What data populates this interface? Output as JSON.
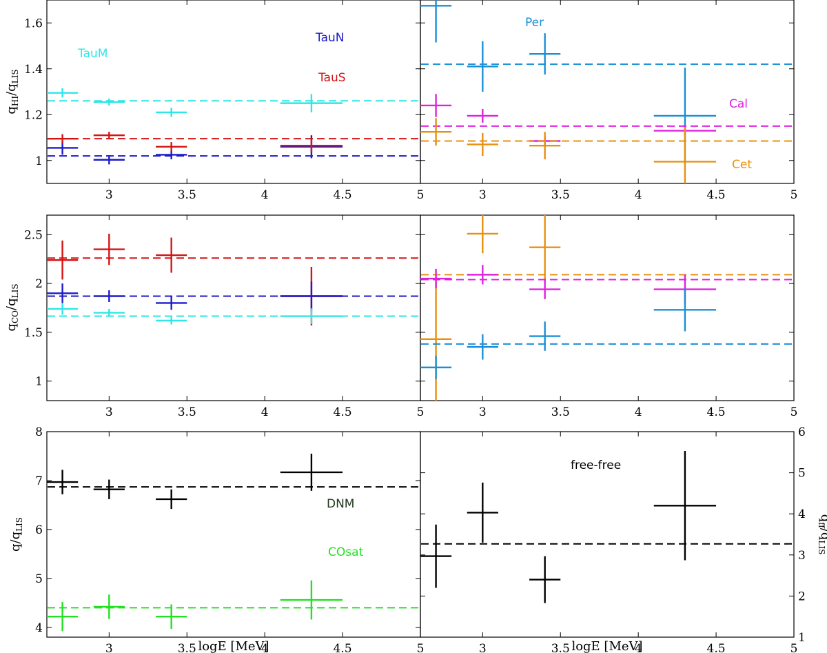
{
  "colors": {
    "TauM": "#2ee6e6",
    "TauN": "#1c1cc8",
    "TauS": "#d41414",
    "Per": "#1a8fd6",
    "Cal": "#e020e0",
    "Cet": "#e8900e",
    "DNM": "#000000",
    "COsat": "#22e022",
    "freefree": "#000000",
    "DNM_text": "#1e3a1e"
  },
  "labels": {
    "xlabel": "logE [MeV]",
    "ylabel_HI": "q_HI/q_LIS",
    "ylabel_CO": "q_CO/q_LIS",
    "ylabel_q": "q/q_LIS",
    "ylabel_ff": "q_ff/q_LIS"
  },
  "chart_data": [
    {
      "type": "scatter",
      "panel": "HI-left",
      "ylabel": "q_HI/q_LIS",
      "xlim": [
        2.6,
        5.0
      ],
      "ylim": [
        0.9,
        1.7
      ],
      "xticks": [
        3,
        3.5,
        4,
        4.5,
        5
      ],
      "yticks": [
        1,
        1.2,
        1.4,
        1.6
      ],
      "series": [
        {
          "name": "TauM",
          "color_key": "TauM",
          "mean": 1.26,
          "points": [
            {
              "x": 2.7,
              "xerr": 0.1,
              "y": 1.295,
              "yerr": 0.02
            },
            {
              "x": 3.0,
              "xerr": 0.1,
              "y": 1.255,
              "yerr": 0.015
            },
            {
              "x": 3.4,
              "xerr": 0.1,
              "y": 1.21,
              "yerr": 0.02
            },
            {
              "x": 4.3,
              "xerr": 0.2,
              "y": 1.25,
              "yerr": 0.04
            }
          ]
        },
        {
          "name": "TauN",
          "color_key": "TauN",
          "mean": 1.02,
          "points": [
            {
              "x": 2.7,
              "xerr": 0.1,
              "y": 1.055,
              "yerr": 0.03
            },
            {
              "x": 3.0,
              "xerr": 0.1,
              "y": 1.003,
              "yerr": 0.02
            },
            {
              "x": 3.4,
              "xerr": 0.1,
              "y": 1.025,
              "yerr": 0.02
            },
            {
              "x": 4.3,
              "xerr": 0.2,
              "y": 1.06,
              "yerr": 0.05
            }
          ]
        },
        {
          "name": "TauS",
          "color_key": "TauS",
          "mean": 1.095,
          "points": [
            {
              "x": 2.7,
              "xerr": 0.1,
              "y": 1.095,
              "yerr": 0.02
            },
            {
              "x": 3.0,
              "xerr": 0.1,
              "y": 1.11,
              "yerr": 0.015
            },
            {
              "x": 3.4,
              "xerr": 0.1,
              "y": 1.06,
              "yerr": 0.02
            },
            {
              "x": 4.3,
              "xerr": 0.2,
              "y": 1.065,
              "yerr": 0.03
            }
          ]
        }
      ]
    },
    {
      "type": "scatter",
      "panel": "HI-right",
      "xlim": [
        2.6,
        5.0
      ],
      "ylim": [
        0.9,
        1.7
      ],
      "xticks": [
        3,
        3.5,
        4,
        4.5,
        5
      ],
      "series": [
        {
          "name": "Per",
          "color_key": "Per",
          "mean": 1.42,
          "points": [
            {
              "x": 2.7,
              "xerr": 0.1,
              "y": 1.675,
              "yerr": 0.16
            },
            {
              "x": 3.0,
              "xerr": 0.1,
              "y": 1.41,
              "yerr": 0.11
            },
            {
              "x": 3.4,
              "xerr": 0.1,
              "y": 1.465,
              "yerr": 0.09
            },
            {
              "x": 4.3,
              "xerr": 0.2,
              "y": 1.195,
              "yerr": 0.21
            }
          ]
        },
        {
          "name": "Cal",
          "color_key": "Cal",
          "mean": 1.15,
          "points": [
            {
              "x": 2.7,
              "xerr": 0.1,
              "y": 1.24,
              "yerr": 0.05
            },
            {
              "x": 3.0,
              "xerr": 0.1,
              "y": 1.195,
              "yerr": 0.03
            },
            {
              "x": 3.4,
              "xerr": 0.1,
              "y": 1.085,
              "yerr": 0.02
            },
            {
              "x": 4.3,
              "xerr": 0.2,
              "y": 1.13,
              "yerr": 0.02
            }
          ]
        },
        {
          "name": "Cet",
          "color_key": "Cet",
          "mean": 1.085,
          "points": [
            {
              "x": 2.7,
              "xerr": 0.1,
              "y": 1.125,
              "yerr": 0.06
            },
            {
              "x": 3.0,
              "xerr": 0.1,
              "y": 1.07,
              "yerr": 0.05
            },
            {
              "x": 3.4,
              "xerr": 0.1,
              "y": 1.065,
              "yerr": 0.06
            },
            {
              "x": 4.3,
              "xerr": 0.2,
              "y": 0.995,
              "yerr": 0.15
            }
          ]
        }
      ]
    },
    {
      "type": "scatter",
      "panel": "CO-left",
      "ylabel": "q_CO/q_LIS",
      "xlim": [
        2.6,
        5.0
      ],
      "ylim": [
        0.8,
        2.7
      ],
      "xticks": [
        3,
        3.5,
        4,
        4.5,
        5
      ],
      "yticks": [
        1,
        1.5,
        2,
        2.5
      ],
      "series": [
        {
          "name": "TauS",
          "color_key": "TauS",
          "mean": 2.26,
          "points": [
            {
              "x": 2.7,
              "xerr": 0.1,
              "y": 2.24,
              "yerr": 0.2
            },
            {
              "x": 3.0,
              "xerr": 0.1,
              "y": 2.35,
              "yerr": 0.16
            },
            {
              "x": 3.4,
              "xerr": 0.1,
              "y": 2.29,
              "yerr": 0.18
            },
            {
              "x": 4.3,
              "xerr": 0.2,
              "y": 1.87,
              "yerr": 0.3
            }
          ]
        },
        {
          "name": "TauN",
          "color_key": "TauN",
          "mean": 1.87,
          "points": [
            {
              "x": 2.7,
              "xerr": 0.1,
              "y": 1.9,
              "yerr": 0.1
            },
            {
              "x": 3.0,
              "xerr": 0.1,
              "y": 1.87,
              "yerr": 0.06
            },
            {
              "x": 3.4,
              "xerr": 0.1,
              "y": 1.8,
              "yerr": 0.07
            },
            {
              "x": 4.3,
              "xerr": 0.2,
              "y": 1.87,
              "yerr": 0.15
            }
          ]
        },
        {
          "name": "TauM",
          "color_key": "TauM",
          "mean": 1.665,
          "points": [
            {
              "x": 2.7,
              "xerr": 0.1,
              "y": 1.74,
              "yerr": 0.06
            },
            {
              "x": 3.0,
              "xerr": 0.1,
              "y": 1.7,
              "yerr": 0.04
            },
            {
              "x": 3.4,
              "xerr": 0.1,
              "y": 1.62,
              "yerr": 0.04
            },
            {
              "x": 4.3,
              "xerr": 0.2,
              "y": 1.665,
              "yerr": 0.08
            }
          ]
        }
      ]
    },
    {
      "type": "scatter",
      "panel": "CO-right",
      "xlim": [
        2.6,
        5.0
      ],
      "ylim": [
        0.8,
        2.7
      ],
      "xticks": [
        3,
        3.5,
        4,
        4.5,
        5
      ],
      "series": [
        {
          "name": "Cet",
          "color_key": "Cet",
          "mean": 2.09,
          "points": [
            {
              "x": 2.7,
              "xerr": 0.1,
              "y": 1.43,
              "yerr": 0.65
            },
            {
              "x": 3.0,
              "xerr": 0.1,
              "y": 2.51,
              "yerr": 0.2
            },
            {
              "x": 3.4,
              "xerr": 0.1,
              "y": 2.37,
              "yerr": 0.33
            }
          ]
        },
        {
          "name": "Cal",
          "color_key": "Cal",
          "mean": 2.04,
          "points": [
            {
              "x": 2.7,
              "xerr": 0.1,
              "y": 2.05,
              "yerr": 0.1
            },
            {
              "x": 3.0,
              "xerr": 0.1,
              "y": 2.09,
              "yerr": 0.1
            },
            {
              "x": 3.4,
              "xerr": 0.1,
              "y": 1.94,
              "yerr": 0.1
            },
            {
              "x": 4.3,
              "xerr": 0.2,
              "y": 1.94,
              "yerr": 0.15
            }
          ]
        },
        {
          "name": "Per",
          "color_key": "Per",
          "mean": 1.38,
          "points": [
            {
              "x": 2.7,
              "xerr": 0.1,
              "y": 1.14,
              "yerr": 0.12
            },
            {
              "x": 3.0,
              "xerr": 0.1,
              "y": 1.35,
              "yerr": 0.13
            },
            {
              "x": 3.4,
              "xerr": 0.1,
              "y": 1.46,
              "yerr": 0.15
            },
            {
              "x": 4.3,
              "xerr": 0.2,
              "y": 1.73,
              "yerr": 0.22
            }
          ]
        }
      ]
    },
    {
      "type": "scatter",
      "panel": "DNM-left",
      "ylabel": "q/q_LIS",
      "xlabel": "logE [MeV]",
      "xlim": [
        2.6,
        5.0
      ],
      "ylim": [
        3.8,
        8.0
      ],
      "xticks": [
        3,
        3.5,
        4,
        4.5,
        5
      ],
      "yticks": [
        4,
        5,
        6,
        7,
        8
      ],
      "series": [
        {
          "name": "DNM",
          "color_key": "DNM",
          "mean": 6.87,
          "points": [
            {
              "x": 2.7,
              "xerr": 0.1,
              "y": 6.97,
              "yerr": 0.25
            },
            {
              "x": 3.0,
              "xerr": 0.1,
              "y": 6.82,
              "yerr": 0.2
            },
            {
              "x": 3.4,
              "xerr": 0.1,
              "y": 6.62,
              "yerr": 0.2
            },
            {
              "x": 4.3,
              "xerr": 0.2,
              "y": 7.17,
              "yerr": 0.38
            }
          ]
        },
        {
          "name": "COsat",
          "color_key": "COsat",
          "mean": 4.4,
          "points": [
            {
              "x": 2.7,
              "xerr": 0.1,
              "y": 4.22,
              "yerr": 0.3
            },
            {
              "x": 3.0,
              "xerr": 0.1,
              "y": 4.42,
              "yerr": 0.25
            },
            {
              "x": 3.4,
              "xerr": 0.1,
              "y": 4.22,
              "yerr": 0.25
            },
            {
              "x": 4.3,
              "xerr": 0.2,
              "y": 4.56,
              "yerr": 0.4
            }
          ]
        }
      ]
    },
    {
      "type": "scatter",
      "panel": "ff-right",
      "ylabel": "q_ff/q_LIS",
      "xlabel": "logE [MeV]",
      "xlim": [
        2.6,
        5.0
      ],
      "ylim": [
        1.0,
        6.0
      ],
      "xticks": [
        3,
        3.5,
        4,
        4.5,
        5
      ],
      "yticks": [
        1,
        2,
        3,
        4,
        5,
        6
      ],
      "series": [
        {
          "name": "free-free",
          "color_key": "freefree",
          "mean": 3.27,
          "points": [
            {
              "x": 2.7,
              "xerr": 0.1,
              "y": 2.97,
              "yerr": 0.77
            },
            {
              "x": 3.0,
              "xerr": 0.1,
              "y": 4.03,
              "yerr": 0.73
            },
            {
              "x": 3.4,
              "xerr": 0.1,
              "y": 2.4,
              "yerr": 0.57
            },
            {
              "x": 4.3,
              "xerr": 0.2,
              "y": 4.2,
              "yerr": 1.33
            }
          ]
        }
      ]
    }
  ]
}
